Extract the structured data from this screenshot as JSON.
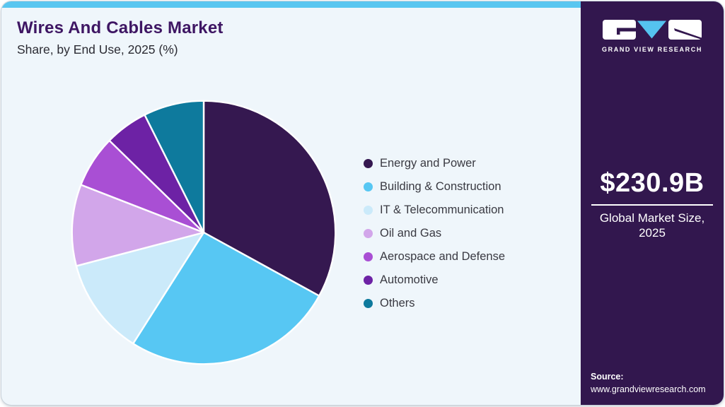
{
  "header": {
    "title": "Wires And Cables Market",
    "subtitle": "Share, by End Use, 2025 (%)"
  },
  "chart_data": {
    "type": "pie",
    "title": "Wires And Cables Market Share, by End Use, 2025 (%)",
    "unit": "%",
    "start_angle_deg": 0,
    "direction": "clockwise",
    "legend_position": "right",
    "slices": [
      {
        "label": "Energy and Power",
        "value": 33.0,
        "color": "#351850"
      },
      {
        "label": "Building & Construction",
        "value": 26.0,
        "color": "#57C7F3"
      },
      {
        "label": "IT & Telecommunication",
        "value": 11.9,
        "color": "#CBEAFA"
      },
      {
        "label": "Oil and Gas",
        "value": 10.0,
        "color": "#D2A6EA"
      },
      {
        "label": "Aerospace and Defense",
        "value": 6.4,
        "color": "#A94FD4"
      },
      {
        "label": "Automotive",
        "value": 5.3,
        "color": "#6D22A5"
      },
      {
        "label": "Others",
        "value": 7.4,
        "color": "#0E7A9D"
      }
    ]
  },
  "sidebar": {
    "brand": {
      "name": "GRAND VIEW RESEARCH",
      "logo_icons": [
        "g-block-icon",
        "v-triangle-icon",
        "r-block-icon"
      ]
    },
    "market_size_value": "$230.9B",
    "market_size_label_line1": "Global Market Size,",
    "market_size_label_line2": "2025",
    "source_label": "Source:",
    "source_url": "www.grandviewresearch.com"
  },
  "colors": {
    "card_background": "#EFF6FB",
    "topbar_accent": "#59C6F0",
    "sidebar_background": "#32174E",
    "title_purple": "#3E1663",
    "slice_stroke": "#FFFFFF",
    "logo_triangle_blue": "#55C3F0"
  }
}
